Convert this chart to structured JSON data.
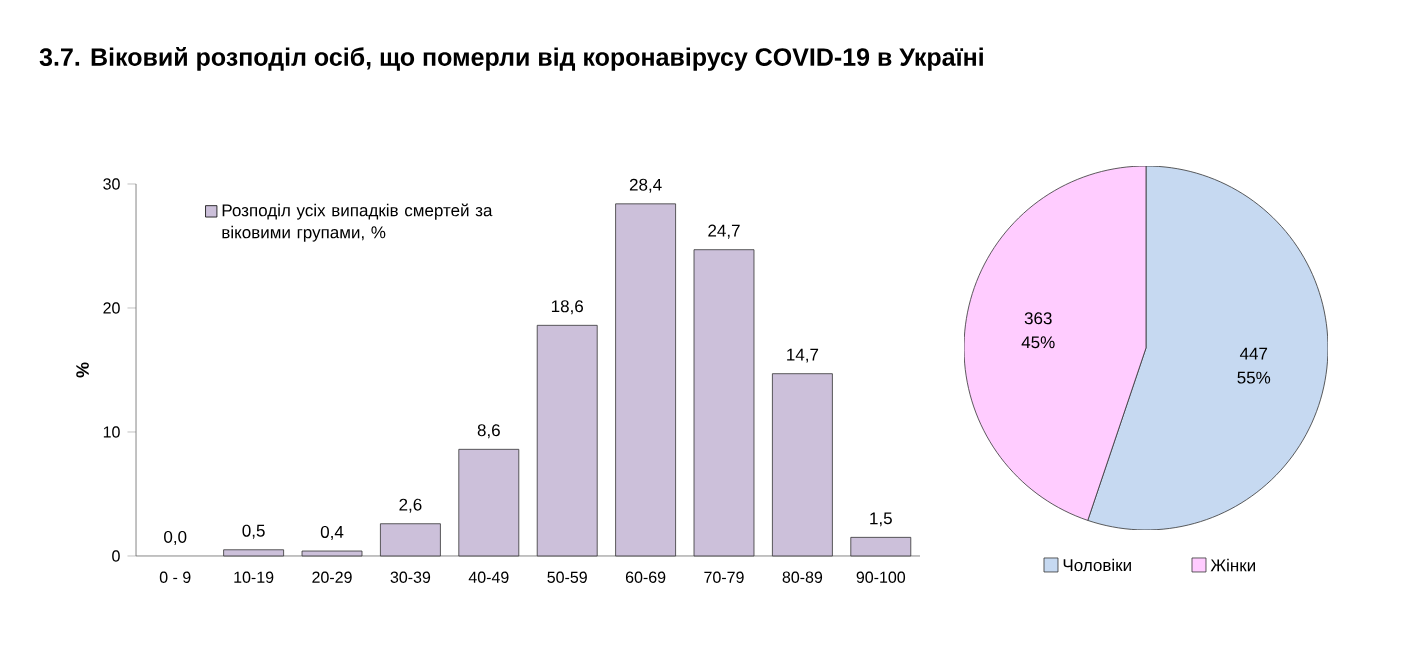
{
  "chart_data": [
    {
      "type": "bar",
      "title": "3.7.  Віковий розподіл осіб, що померли від коронавірусу COVID-19 в Україні",
      "ylabel": "%",
      "categories": [
        "0 - 9",
        "10-19",
        "20-29",
        "30-39",
        "40-49",
        "50-59",
        "60-69",
        "70-79",
        "80-89",
        "90-100"
      ],
      "series": [
        {
          "name": "Розподіл усіх випадків смертей за віковими групами, %",
          "color": "#ccc0da",
          "values": [
            0.0,
            0.5,
            0.4,
            2.6,
            8.6,
            18.6,
            28.4,
            24.7,
            14.7,
            1.5
          ],
          "value_labels": [
            "0,0",
            "0,5",
            "0,4",
            "2,6",
            "8,6",
            "18,6",
            "28,4",
            "24,7",
            "14,7",
            "1,5"
          ]
        }
      ],
      "ylim": [
        0,
        30
      ],
      "yticks": [
        0,
        10,
        20,
        30
      ],
      "legend": "top left"
    },
    {
      "type": "pie",
      "categories": [
        "Чоловіки",
        "Жінки"
      ],
      "values": [
        447,
        363
      ],
      "colors": [
        "#c6d9f1",
        "#ffccff"
      ],
      "value_labels": [
        "447 55%",
        "363 45%"
      ],
      "legend": "bottom"
    }
  ]
}
